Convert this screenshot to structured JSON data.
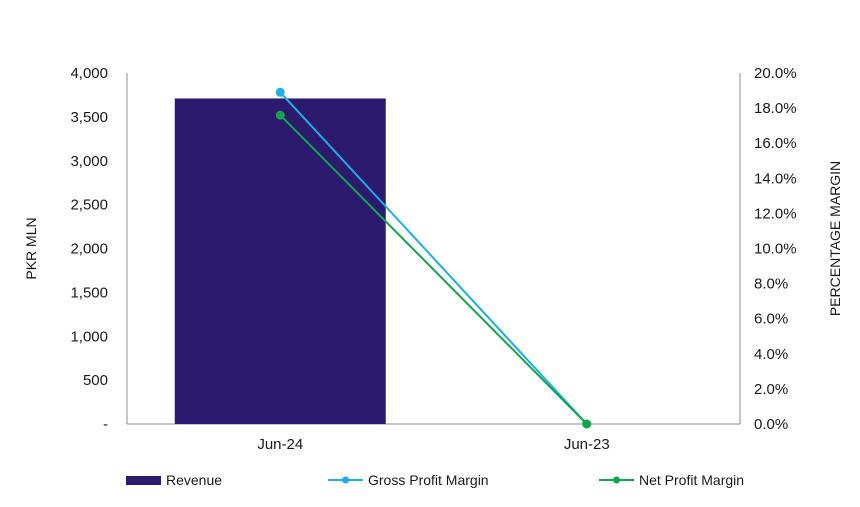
{
  "chart_data": {
    "type": "bar",
    "categories": [
      "Jun-24",
      "Jun-23"
    ],
    "series": [
      {
        "name": "Revenue",
        "kind": "bar",
        "axis": "left",
        "color": "#2b1a6e",
        "values": [
          3710,
          0
        ]
      },
      {
        "name": "Gross Profit Margin",
        "kind": "line",
        "axis": "right",
        "color": "#1eaee3",
        "values": [
          18.9,
          0.0
        ]
      },
      {
        "name": "Net Profit Margin",
        "kind": "line",
        "axis": "right",
        "color": "#13a44e",
        "values": [
          17.6,
          0.0
        ]
      }
    ],
    "y_left": {
      "label": "PKR MLN",
      "ylim": [
        0,
        4000
      ],
      "ticks": [
        "-",
        "500",
        "1,000",
        "1,500",
        "2,000",
        "2,500",
        "3,000",
        "3,500",
        "4,000"
      ]
    },
    "y_right": {
      "label": "PERCENTAGE MARGIN",
      "ylim": [
        0,
        20
      ],
      "ticks": [
        "0.0%",
        "2.0%",
        "4.0%",
        "6.0%",
        "8.0%",
        "10.0%",
        "12.0%",
        "14.0%",
        "16.0%",
        "18.0%",
        "20.0%"
      ]
    },
    "grid": false,
    "legend": "bottom"
  }
}
